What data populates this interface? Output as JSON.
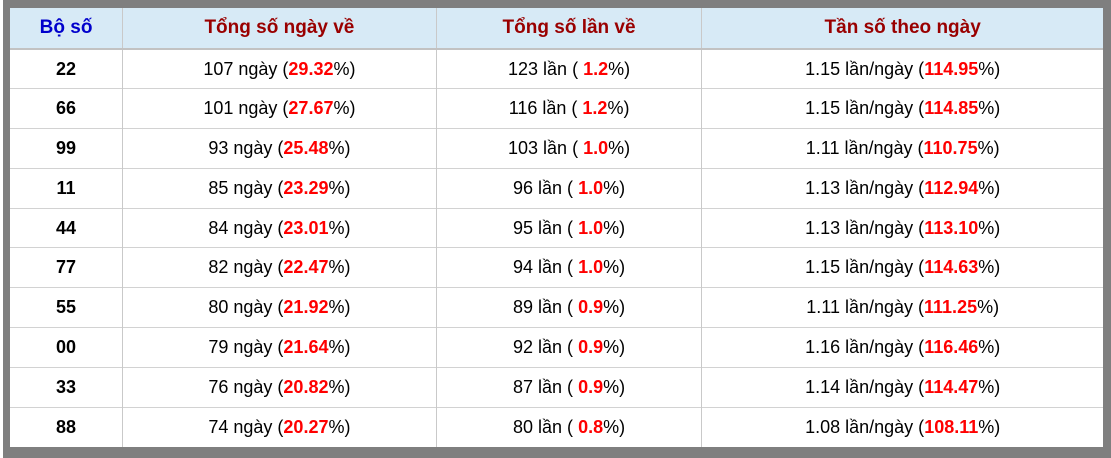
{
  "colors": {
    "header_bg": "#d7eaf6",
    "header_text_blue": "#0000cc",
    "header_text_red": "#990000",
    "percent_red": "#ff0000",
    "body_text": "#000000",
    "cell_border": "#c9c9c9",
    "outer_frame": "#7f7f7f"
  },
  "table": {
    "headers": [
      {
        "label": "Bộ số"
      },
      {
        "label": "Tổng số ngày về"
      },
      {
        "label": "Tổng số lần về"
      },
      {
        "label": "Tần số theo ngày"
      }
    ],
    "units": {
      "days_suffix": " ngày (",
      "times_suffix": " lần ( ",
      "freq_suffix": " lần/ngày (",
      "percent_close": "%)"
    },
    "rows": [
      {
        "pair": "22",
        "days": "107",
        "days_pct": "29.32",
        "times": "123",
        "times_pct": "1.2",
        "freq": "1.15",
        "freq_pct": "114.95"
      },
      {
        "pair": "66",
        "days": "101",
        "days_pct": "27.67",
        "times": "116",
        "times_pct": "1.2",
        "freq": "1.15",
        "freq_pct": "114.85"
      },
      {
        "pair": "99",
        "days": "93",
        "days_pct": "25.48",
        "times": "103",
        "times_pct": "1.0",
        "freq": "1.11",
        "freq_pct": "110.75"
      },
      {
        "pair": "11",
        "days": "85",
        "days_pct": "23.29",
        "times": "96",
        "times_pct": "1.0",
        "freq": "1.13",
        "freq_pct": "112.94"
      },
      {
        "pair": "44",
        "days": "84",
        "days_pct": "23.01",
        "times": "95",
        "times_pct": "1.0",
        "freq": "1.13",
        "freq_pct": "113.10"
      },
      {
        "pair": "77",
        "days": "82",
        "days_pct": "22.47",
        "times": "94",
        "times_pct": "1.0",
        "freq": "1.15",
        "freq_pct": "114.63"
      },
      {
        "pair": "55",
        "days": "80",
        "days_pct": "21.92",
        "times": "89",
        "times_pct": "0.9",
        "freq": "1.11",
        "freq_pct": "111.25"
      },
      {
        "pair": "00",
        "days": "79",
        "days_pct": "21.64",
        "times": "92",
        "times_pct": "0.9",
        "freq": "1.16",
        "freq_pct": "116.46"
      },
      {
        "pair": "33",
        "days": "76",
        "days_pct": "20.82",
        "times": "87",
        "times_pct": "0.9",
        "freq": "1.14",
        "freq_pct": "114.47"
      },
      {
        "pair": "88",
        "days": "74",
        "days_pct": "20.27",
        "times": "80",
        "times_pct": "0.8",
        "freq": "1.08",
        "freq_pct": "108.11"
      }
    ]
  }
}
